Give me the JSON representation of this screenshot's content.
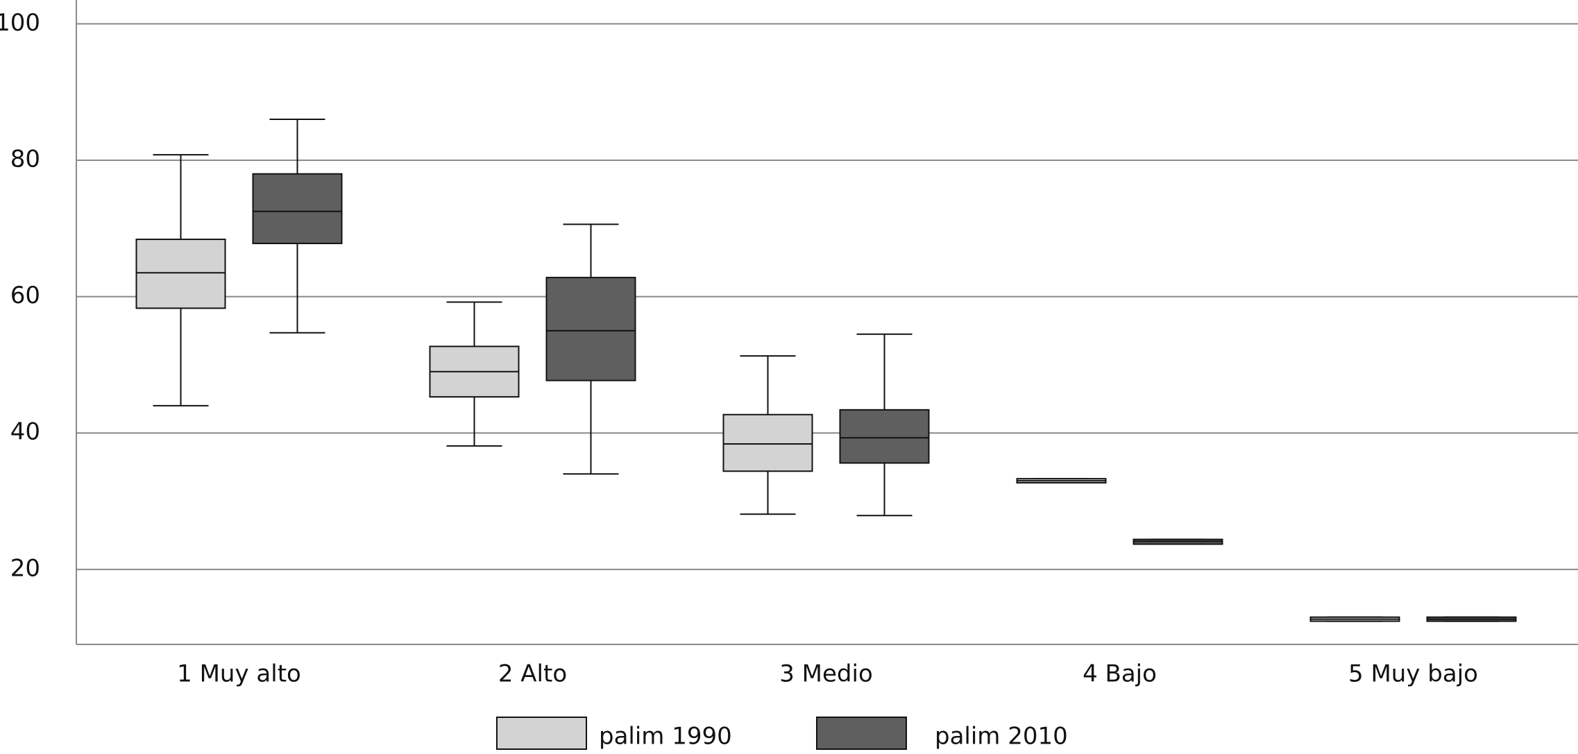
{
  "chart_data": {
    "type": "box",
    "categories": [
      "1 Muy alto",
      "2 Alto",
      "3 Medio",
      "4 Bajo",
      "5 Muy bajo"
    ],
    "series": [
      {
        "name": "palim 1990",
        "color": "#d3d3d3",
        "min": [
          44.0,
          38.1,
          28.1,
          32.7,
          12.4
        ],
        "q1": [
          58.3,
          45.3,
          34.4,
          32.7,
          12.4
        ],
        "median": [
          63.5,
          49.0,
          38.4,
          33.0,
          12.7
        ],
        "q3": [
          68.4,
          52.7,
          42.7,
          33.3,
          13.0
        ],
        "max": [
          80.8,
          59.2,
          51.3,
          33.3,
          13.0
        ]
      },
      {
        "name": "palim 2010",
        "color": "#5f5f5f",
        "min": [
          54.7,
          34.0,
          27.9,
          23.7,
          12.4
        ],
        "q1": [
          67.8,
          47.7,
          35.6,
          23.7,
          12.4
        ],
        "median": [
          72.5,
          55.0,
          39.3,
          24.1,
          12.7
        ],
        "q3": [
          78.0,
          62.8,
          43.4,
          24.4,
          13.0
        ],
        "max": [
          86.0,
          70.6,
          54.5,
          24.4,
          13.0
        ]
      }
    ],
    "ylim": [
      9,
      103.5
    ],
    "yticks": [
      20,
      40,
      60,
      80,
      100
    ],
    "grid": true,
    "legend": "bottom"
  }
}
